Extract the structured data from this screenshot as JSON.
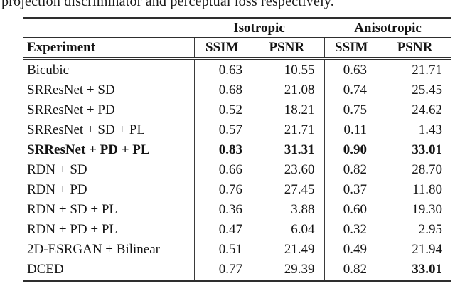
{
  "caption_text": "projection discriminator and perceptual loss respectively.",
  "colors": {
    "text": "#141414",
    "rule": "#2e2e2e",
    "background": "#ffffff"
  },
  "table": {
    "group_headers": {
      "isotropic": "Isotropic",
      "anisotropic": "Anisotropic"
    },
    "columns": {
      "experiment": "Experiment",
      "ssim_iso": "SSIM",
      "psnr_iso": "PSNR",
      "ssim_aniso": "SSIM",
      "psnr_aniso": "PSNR"
    },
    "rows": [
      {
        "experiment": "Bicubic",
        "ssim_iso": "0.63",
        "psnr_iso": "10.55",
        "ssim_aniso": "0.63",
        "psnr_aniso": "21.71"
      },
      {
        "experiment": "SRResNet + SD",
        "ssim_iso": "0.68",
        "psnr_iso": "21.08",
        "ssim_aniso": "0.74",
        "psnr_aniso": "25.45"
      },
      {
        "experiment": "SRResNet + PD",
        "ssim_iso": "0.52",
        "psnr_iso": "18.21",
        "ssim_aniso": "0.75",
        "psnr_aniso": "24.62"
      },
      {
        "experiment": "SRResNet + SD + PL",
        "ssim_iso": "0.57",
        "psnr_iso": "21.71",
        "ssim_aniso": "0.11",
        "psnr_aniso": "1.43"
      },
      {
        "experiment": "SRResNet + PD + PL",
        "ssim_iso": "0.83",
        "psnr_iso": "31.31",
        "ssim_aniso": "0.90",
        "psnr_aniso": "33.01",
        "bold_row": true
      },
      {
        "experiment": "RDN + SD",
        "ssim_iso": "0.66",
        "psnr_iso": "23.60",
        "ssim_aniso": "0.82",
        "psnr_aniso": "28.70"
      },
      {
        "experiment": "RDN + PD",
        "ssim_iso": "0.76",
        "psnr_iso": "27.45",
        "ssim_aniso": "0.37",
        "psnr_aniso": "11.80"
      },
      {
        "experiment": "RDN + SD + PL",
        "ssim_iso": "0.36",
        "psnr_iso": "3.88",
        "ssim_aniso": "0.60",
        "psnr_aniso": "19.30"
      },
      {
        "experiment": "RDN + PD + PL",
        "ssim_iso": "0.47",
        "psnr_iso": "6.04",
        "ssim_aniso": "0.32",
        "psnr_aniso": "2.95"
      },
      {
        "experiment": "2D-ESRGAN + Bilinear",
        "ssim_iso": "0.51",
        "psnr_iso": "21.49",
        "ssim_aniso": "0.49",
        "psnr_aniso": "21.94"
      },
      {
        "experiment": "DCED",
        "ssim_iso": "0.77",
        "psnr_iso": "29.39",
        "ssim_aniso": "0.82",
        "psnr_aniso": "33.01",
        "bold_cells": [
          "psnr_aniso"
        ]
      }
    ]
  }
}
